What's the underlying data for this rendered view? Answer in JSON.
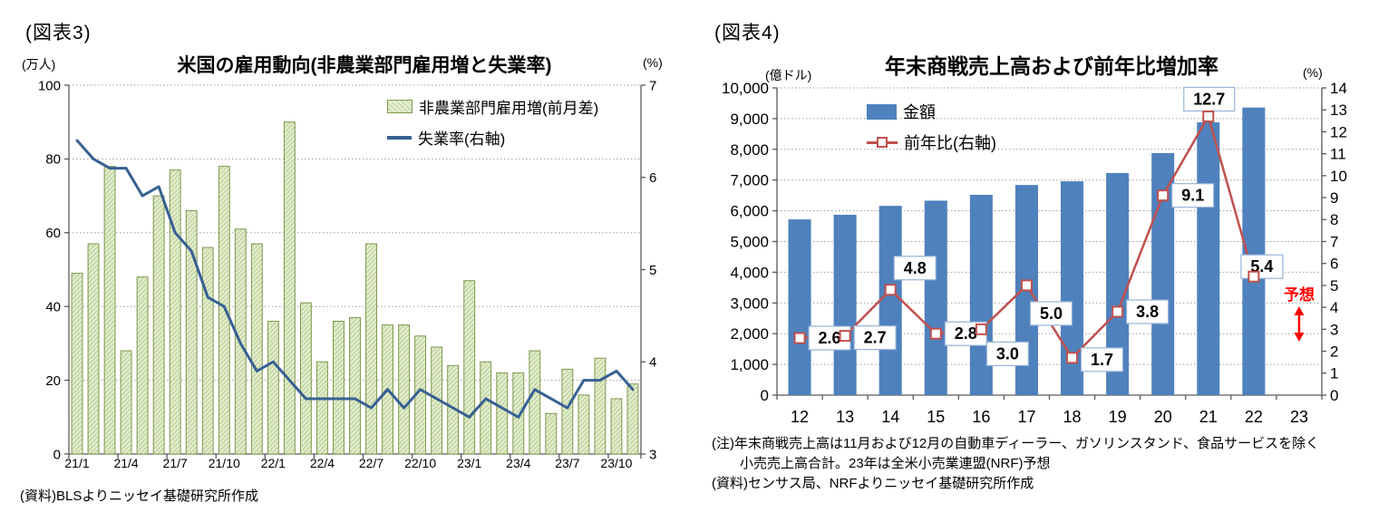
{
  "figure3": {
    "tag": "(図表3)",
    "title": "米国の雇用動向(非農業部門雇用増と失業率)",
    "unit_left": "(万人)",
    "unit_right": "(%)",
    "legend": [
      {
        "label": "非農業部門雇用増(前月差)",
        "swatch": "hatched-green-bar"
      },
      {
        "label": "失業率(右軸)",
        "swatch": "blue-line"
      }
    ],
    "source": "(資料)BLSよりニッセイ基礎研究所作成"
  },
  "figure4": {
    "tag": "(図表4)",
    "title": "年末商戦売上高および前年比増加率",
    "unit_left": "(億ドル)",
    "unit_right": "(%)",
    "legend": [
      {
        "label": "金額",
        "swatch": "blue-bar"
      },
      {
        "label": "前年比(右軸)",
        "swatch": "red-line-square-marker"
      }
    ],
    "notes": [
      "(注)年末商戦売上高は11月および12月の自動車ディーラー、ガソリンスタンド、食品サービスを除く",
      "小売売上高合計。23年は全米小売業連盟(NRF)予想",
      "(資料)センサス局、NRFよりニッセイ基礎研究所作成"
    ],
    "forecast_label": "予想"
  },
  "chart_data": [
    {
      "id": "us-employment",
      "type": "bar",
      "combo": "bar+line",
      "title": "米国の雇用動向(非農業部門雇用増と失業率)",
      "left_axis": {
        "label": "(万人)",
        "min": 0,
        "max": 100,
        "step": 20
      },
      "right_axis": {
        "label": "(%)",
        "min": 3,
        "max": 7,
        "step": 1
      },
      "grid": "horizontal-dotted",
      "legend_position": "top-right-inside",
      "x_axis_shown_labels": [
        "21/1",
        "21/4",
        "21/7",
        "21/10",
        "22/1",
        "22/4",
        "22/7",
        "22/10",
        "23/1",
        "23/4",
        "23/7",
        "23/10"
      ],
      "categories": [
        "21/1",
        "21/2",
        "21/3",
        "21/4",
        "21/5",
        "21/6",
        "21/7",
        "21/8",
        "21/9",
        "21/10",
        "21/11",
        "21/12",
        "22/1",
        "22/2",
        "22/3",
        "22/4",
        "22/5",
        "22/6",
        "22/7",
        "22/8",
        "22/9",
        "22/10",
        "22/11",
        "22/12",
        "23/1",
        "23/2",
        "23/3",
        "23/4",
        "23/5",
        "23/6",
        "23/7",
        "23/8",
        "23/9",
        "23/10",
        "23/11"
      ],
      "series": [
        {
          "name": "非農業部門雇用増(前月差)",
          "type": "bar",
          "axis": "left",
          "values": [
            49,
            57,
            78,
            28,
            48,
            70,
            77,
            66,
            56,
            78,
            61,
            57,
            36,
            90,
            41,
            25,
            36,
            37,
            57,
            35,
            35,
            32,
            29,
            24,
            47,
            25,
            22,
            22,
            28,
            11,
            23,
            16,
            26,
            15,
            19
          ]
        },
        {
          "name": "失業率(右軸)",
          "type": "line",
          "axis": "right",
          "values": [
            6.4,
            6.2,
            6.1,
            6.1,
            5.8,
            5.9,
            5.4,
            5.2,
            4.7,
            4.6,
            4.2,
            3.9,
            4.0,
            3.8,
            3.6,
            3.6,
            3.6,
            3.6,
            3.5,
            3.7,
            3.5,
            3.7,
            3.6,
            3.5,
            3.4,
            3.6,
            3.5,
            3.4,
            3.7,
            3.6,
            3.5,
            3.8,
            3.8,
            3.9,
            3.7
          ]
        }
      ],
      "source": "(資料)BLSよりニッセイ基礎研究所作成"
    },
    {
      "id": "holiday-sales",
      "type": "bar",
      "combo": "bar+line",
      "title": "年末商戦売上高および前年比増加率",
      "left_axis": {
        "label": "(億ドル)",
        "min": 0,
        "max": 10000,
        "step": 1000
      },
      "right_axis": {
        "label": "(%)",
        "min": 0,
        "max": 14,
        "step": 1
      },
      "grid": "horizontal-dotted",
      "legend_position": "top-left-inside",
      "categories": [
        "12",
        "13",
        "14",
        "15",
        "16",
        "17",
        "18",
        "19",
        "20",
        "21",
        "22",
        "23"
      ],
      "series": [
        {
          "name": "金額",
          "type": "bar",
          "axis": "left",
          "values": [
            5720,
            5870,
            6160,
            6330,
            6520,
            6840,
            6960,
            7230,
            7880,
            8880,
            9360,
            null
          ]
        },
        {
          "name": "前年比(右軸)",
          "type": "line",
          "axis": "right",
          "values": [
            2.6,
            2.7,
            4.8,
            2.8,
            3.0,
            5.0,
            1.7,
            3.8,
            9.1,
            12.7,
            5.4,
            null
          ],
          "point_labels": [
            "2.6",
            "2.7",
            "4.8",
            "2.8",
            "3.0",
            "5.0",
            "1.7",
            "3.8",
            "9.1",
            "12.7",
            "5.4"
          ],
          "label_offsets": [
            [
              10,
              -13
            ],
            [
              10,
              -11
            ],
            [
              4,
              -37
            ],
            [
              10,
              -13
            ],
            [
              6,
              14
            ],
            [
              4,
              18
            ],
            [
              10,
              -11
            ],
            [
              10,
              -13
            ],
            [
              10,
              -13
            ],
            [
              -27,
              -32
            ],
            [
              -14,
              -24
            ]
          ]
        }
      ],
      "annotations": [
        {
          "text": "予想",
          "category": "23",
          "color": "#ff0000",
          "arrow": "vertical-double-headed"
        }
      ],
      "notes": [
        "(注)年末商戦売上高は11月および12月の自動車ディーラー、ガソリンスタンド、食品サービスを除く",
        "小売売上高合計。23年は全米小売業連盟(NRF)予想",
        "(資料)センサス局、NRFよりニッセイ基礎研究所作成"
      ]
    }
  ],
  "colors": {
    "green_bar_fill": "#e4edd2",
    "green_bar_hatch": "#bcd394",
    "green_bar_border": "#7e984d",
    "blue_line": "#376092",
    "blue_bar": "#4f81bd",
    "red_line": "#c0504d",
    "marker_fill": "#ffffff",
    "label_box_border": "#95b3d7",
    "forecast_red": "#ff0000",
    "grid": "#9c9c9c",
    "axis": "#595959"
  }
}
